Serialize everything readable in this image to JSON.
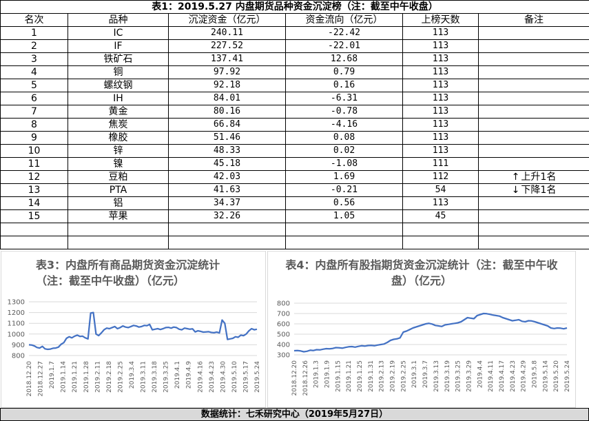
{
  "table": {
    "title": "表1：2019.5.27 内盘期货品种资金沉淀榜（注：截至中午收盘）",
    "headers": [
      "名次",
      "品种",
      "沉淀资金（亿元）",
      "资金流向（亿元）",
      "上榜天数",
      "备注"
    ],
    "rows": [
      {
        "rank": "1",
        "name": "IC",
        "funds": "240.11",
        "flow": "-22.42",
        "days": "113",
        "note": ""
      },
      {
        "rank": "2",
        "name": "IF",
        "funds": "227.52",
        "flow": "-22.01",
        "days": "113",
        "note": ""
      },
      {
        "rank": "3",
        "name": "铁矿石",
        "funds": "137.41",
        "flow": "12.68",
        "days": "113",
        "note": ""
      },
      {
        "rank": "4",
        "name": "铜",
        "funds": "97.92",
        "flow": "0.79",
        "days": "113",
        "note": ""
      },
      {
        "rank": "5",
        "name": "螺纹钢",
        "funds": "92.18",
        "flow": "0.16",
        "days": "113",
        "note": ""
      },
      {
        "rank": "6",
        "name": "IH",
        "funds": "84.01",
        "flow": "-6.31",
        "days": "113",
        "note": ""
      },
      {
        "rank": "7",
        "name": "黄金",
        "funds": "80.16",
        "flow": "-0.78",
        "days": "113",
        "note": ""
      },
      {
        "rank": "8",
        "name": "焦炭",
        "funds": "66.84",
        "flow": "-4.16",
        "days": "113",
        "note": ""
      },
      {
        "rank": "9",
        "name": "橡胶",
        "funds": "51.46",
        "flow": "0.08",
        "days": "113",
        "note": ""
      },
      {
        "rank": "10",
        "name": "锌",
        "funds": "48.33",
        "flow": "0.02",
        "days": "113",
        "note": ""
      },
      {
        "rank": "11",
        "name": "镍",
        "funds": "45.18",
        "flow": "-1.08",
        "days": "111",
        "note": ""
      },
      {
        "rank": "12",
        "name": "豆粕",
        "funds": "42.03",
        "flow": "1.69",
        "days": "112",
        "note": "上升1名",
        "arrow": "↑"
      },
      {
        "rank": "13",
        "name": "PTA",
        "funds": "41.63",
        "flow": "-0.21",
        "days": "54",
        "note": "下降1名",
        "arrow": "↓"
      },
      {
        "rank": "14",
        "name": "铝",
        "funds": "34.37",
        "flow": "0.56",
        "days": "113",
        "note": ""
      },
      {
        "rank": "15",
        "name": "苹果",
        "funds": "32.26",
        "flow": "1.05",
        "days": "45",
        "note": ""
      }
    ]
  },
  "footer": "数据统计：七禾研究中心（2019年5月27日）",
  "colors": {
    "line": "#4472c4",
    "grid": "#d9d9d9",
    "axis_text": "#595959"
  },
  "chart_data": [
    {
      "type": "line",
      "title": "表3：内盘所有商品期货资金沉淀统计（注：截至中午收盘）（亿元）",
      "ylim": [
        800,
        1300
      ],
      "yticks": [
        800,
        900,
        1000,
        1100,
        1200,
        1300
      ],
      "xticks": [
        "2018.12.20",
        "2018.12.27",
        "2019.1.7",
        "2019.1.14",
        "2019.1.21",
        "2019.1.28",
        "2019.2.11",
        "2019.2.18",
        "2019.2.25",
        "2019.3.4",
        "2019.3.11",
        "2019.3.18",
        "2019.3.25",
        "2019.4.1",
        "2019.4.9",
        "2019.4.16",
        "2019.4.23",
        "2019.4.30",
        "2019.5.10",
        "2019.5.17",
        "2019.5.24"
      ],
      "grid": true,
      "series": [
        {
          "values": [
            900,
            898,
            890,
            875,
            870,
            885,
            862,
            858,
            860,
            868,
            870,
            878,
            905,
            920,
            960,
            975,
            965,
            980,
            990,
            978,
            980,
            965,
            955,
            1195,
            1200,
            1000,
            985,
            1010,
            1040,
            1055,
            1050,
            1060,
            1070,
            1050,
            1060,
            1075,
            1065,
            1060,
            1070,
            1080,
            1075,
            1065,
            1070,
            1080,
            1078,
            1090,
            1040,
            1045,
            1050,
            1042,
            1050,
            1060,
            1062,
            1055,
            1065,
            1060,
            1045,
            1040,
            1055,
            1050,
            1045,
            1048,
            1020,
            1030,
            1025,
            1018,
            1020,
            1022,
            1015,
            1012,
            1018,
            1010,
            1130,
            1100,
            950,
            955,
            960,
            975,
            970,
            990,
            985,
            1000,
            1030,
            1050,
            1040,
            1045
          ]
        }
      ]
    },
    {
      "type": "line",
      "title": "表4：内盘所有股指期货资金沉淀统计（注：截至中午收盘）（亿元）",
      "ylim": [
        300,
        800
      ],
      "yticks": [
        300,
        400,
        500,
        600,
        700,
        800
      ],
      "xticks": [
        "2018.12.20",
        "2018.12.26",
        "2019.1.3",
        "2019.1.9",
        "2019.1.15",
        "2019.1.21",
        "2019.1.25",
        "2019.1.31",
        "2019.2.13",
        "2019.2.19",
        "2019.2.25",
        "2019.3.1",
        "2019.3.7",
        "2019.3.13",
        "2019.3.19",
        "2019.3.25",
        "2019.3.29",
        "2019.4.4",
        "2019.4.11",
        "2019.4.17",
        "2019.4.23",
        "2019.4.29",
        "2019.5.8",
        "2019.5.14",
        "2019.5.20",
        "2019.5.24"
      ],
      "grid": true,
      "series": [
        {
          "values": [
            340,
            342,
            338,
            330,
            335,
            345,
            342,
            350,
            348,
            355,
            360,
            358,
            362,
            370,
            368,
            365,
            372,
            378,
            380,
            375,
            382,
            388,
            385,
            390,
            392,
            388,
            395,
            400,
            405,
            420,
            440,
            450,
            455,
            465,
            520,
            530,
            545,
            560,
            570,
            580,
            590,
            600,
            605,
            598,
            585,
            580,
            575,
            590,
            595,
            600,
            605,
            610,
            620,
            640,
            660,
            655,
            650,
            680,
            690,
            700,
            698,
            692,
            685,
            680,
            675,
            660,
            650,
            640,
            630,
            635,
            640,
            625,
            620,
            630,
            628,
            620,
            610,
            600,
            590,
            580,
            560,
            555,
            560,
            558,
            552,
            560
          ]
        }
      ]
    }
  ]
}
